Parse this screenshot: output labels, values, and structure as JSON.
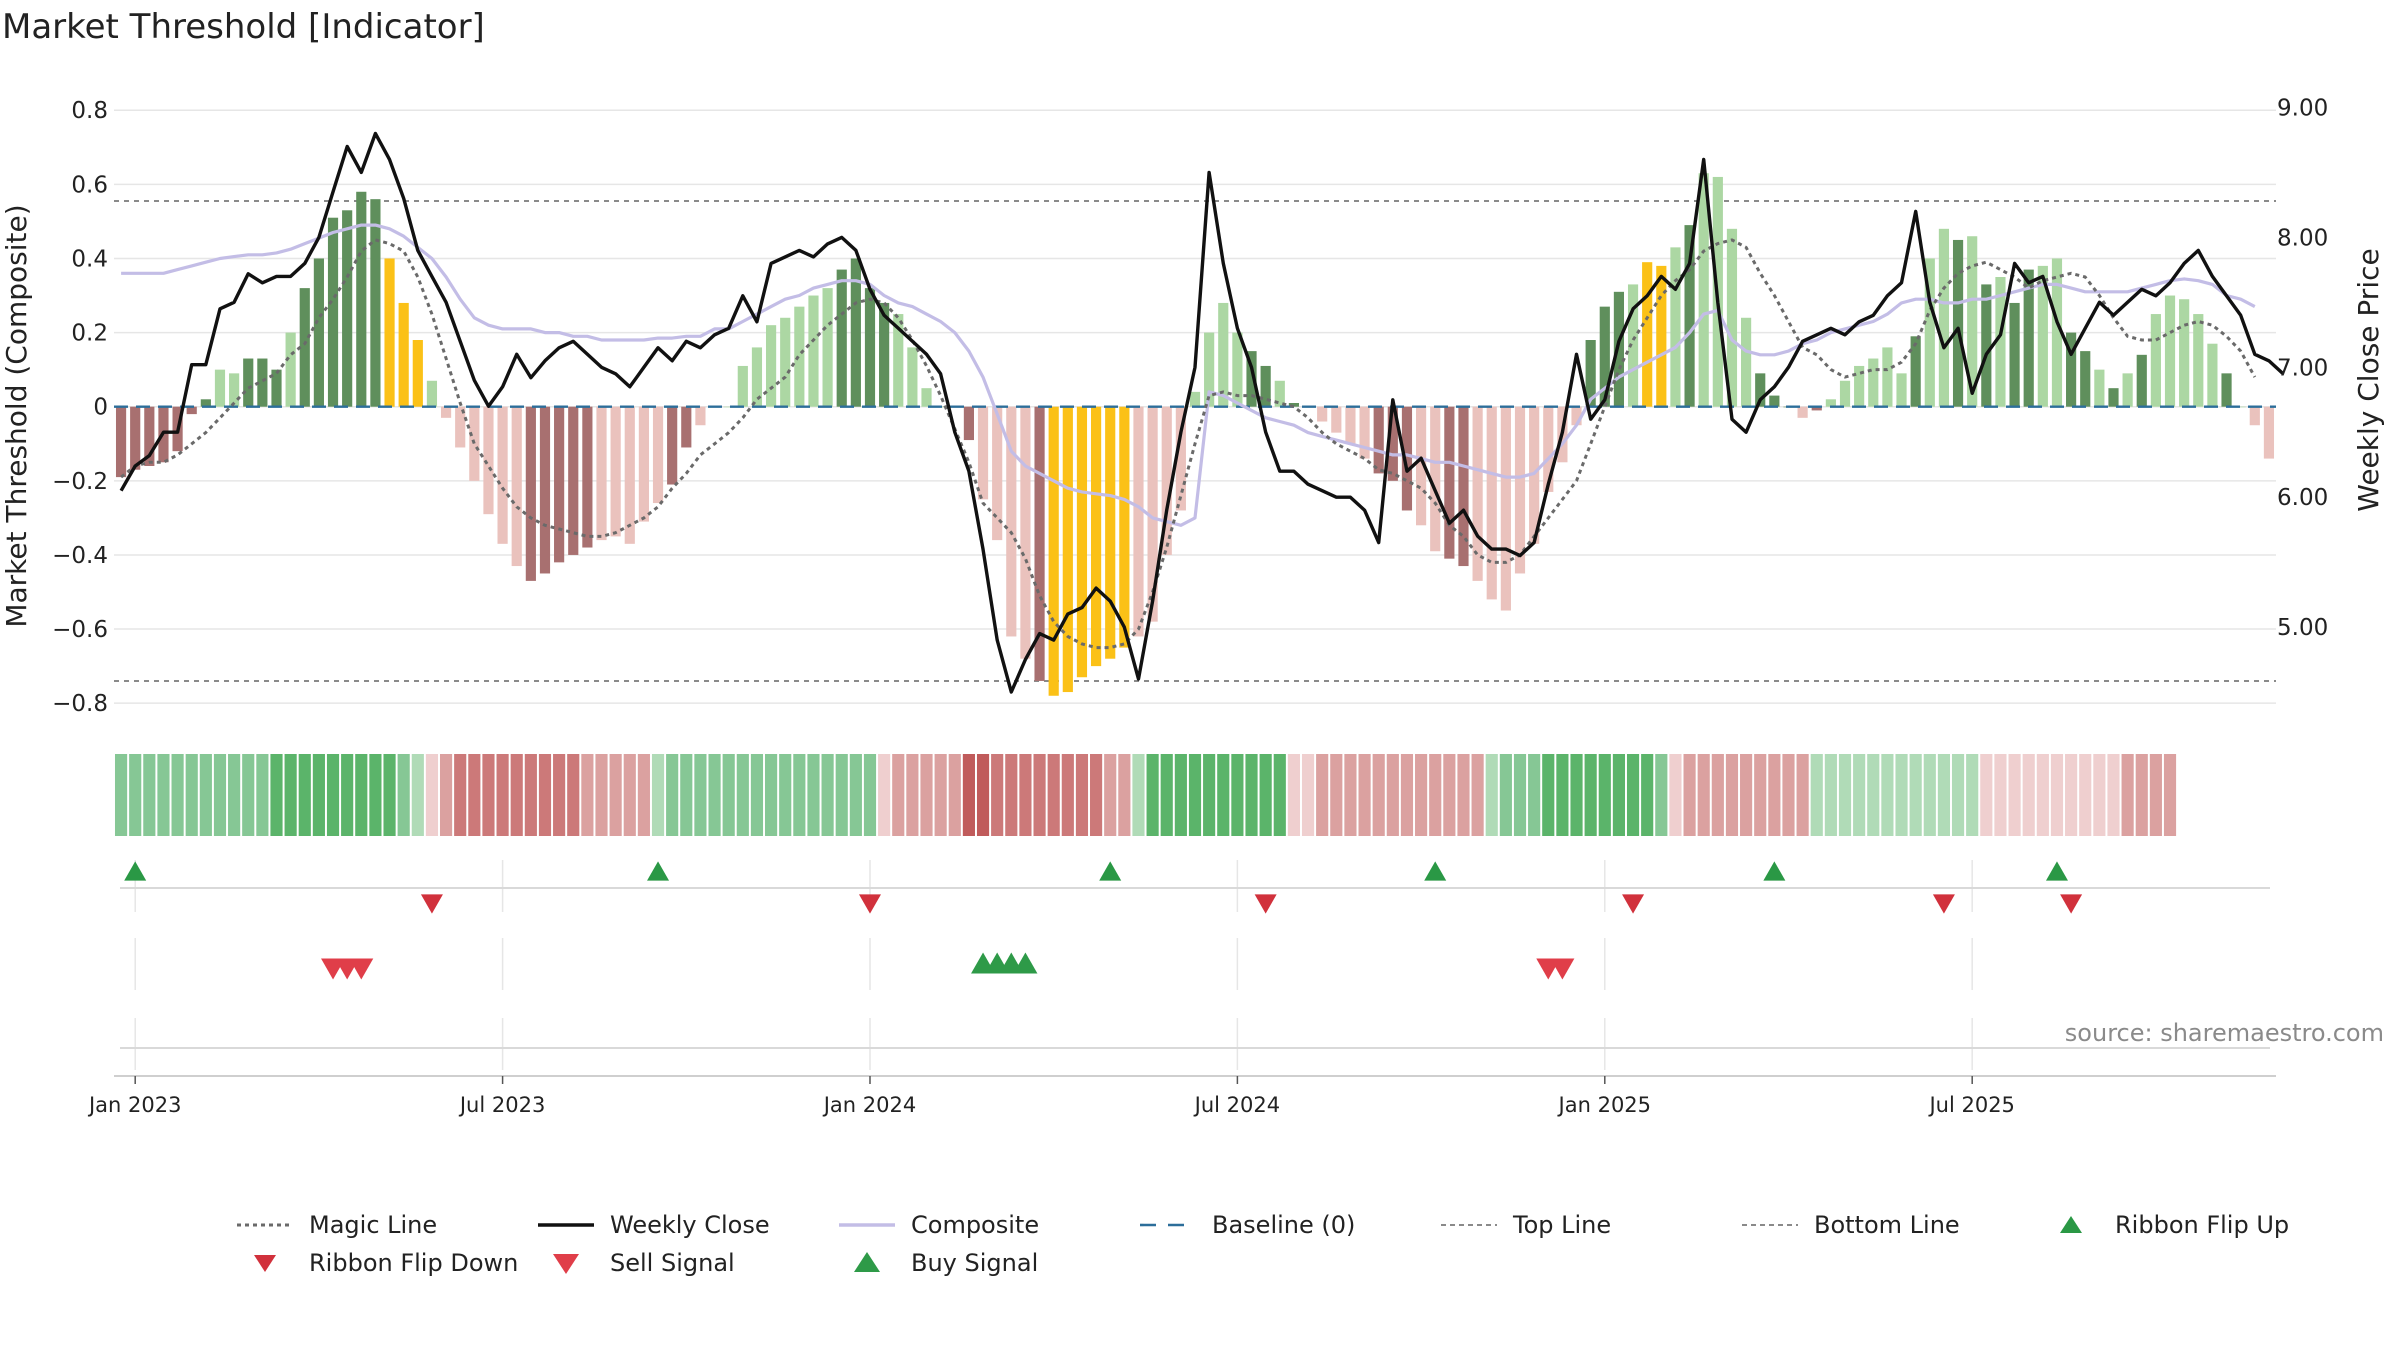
{
  "chart_data": {
    "type": "bar",
    "title": "Market Threshold [Indicator]",
    "ylabel": "Market Threshold (Composite)",
    "y2label": "Weekly Close Price",
    "ylim": [
      -0.84,
      0.86
    ],
    "y2lim": [
      4.3,
      9.15
    ],
    "yticks": [
      {
        "v": 0.8,
        "label": "0.8"
      },
      {
        "v": 0.6,
        "label": "0.6"
      },
      {
        "v": 0.4,
        "label": "0.4"
      },
      {
        "v": 0.2,
        "label": "0.2"
      },
      {
        "v": 0,
        "label": "0"
      },
      {
        "v": -0.2,
        "label": "−0.2"
      },
      {
        "v": -0.4,
        "label": "−0.4"
      },
      {
        "v": -0.6,
        "label": "−0.6"
      },
      {
        "v": -0.8,
        "label": "−0.8"
      }
    ],
    "y2ticks": [
      {
        "v": 9,
        "label": "9.00"
      },
      {
        "v": 8,
        "label": "8.00"
      },
      {
        "v": 7,
        "label": "7.00"
      },
      {
        "v": 6,
        "label": "6.00"
      },
      {
        "v": 5,
        "label": "5.00"
      }
    ],
    "xticks": [
      {
        "i": 1,
        "label": "Jan 2023"
      },
      {
        "i": 27,
        "label": "Jul 2023"
      },
      {
        "i": 53,
        "label": "Jan 2024"
      },
      {
        "i": 79,
        "label": "Jul 2024"
      },
      {
        "i": 105,
        "label": "Jan 2025"
      },
      {
        "i": 131,
        "label": "Jul 2025"
      }
    ],
    "top_line": 0.555,
    "bottom_line": -0.74,
    "source": "source: sharemaestro.com",
    "legend": [
      {
        "key": "magic",
        "label": "Magic Line"
      },
      {
        "key": "close",
        "label": "Weekly Close"
      },
      {
        "key": "composite",
        "label": "Composite"
      },
      {
        "key": "baseline",
        "label": "Baseline (0)"
      },
      {
        "key": "top",
        "label": "Top Line"
      },
      {
        "key": "bottom",
        "label": "Bottom Line"
      },
      {
        "key": "flipup",
        "label": "Ribbon Flip Up"
      },
      {
        "key": "flipdown",
        "label": "Ribbon Flip Down"
      },
      {
        "key": "sell",
        "label": "Sell Signal"
      },
      {
        "key": "buy",
        "label": "Buy Signal"
      }
    ],
    "colors": {
      "pos_dark": "#5f8f5c",
      "pos_light": "#acd7a3",
      "neg_dark": "#a87070",
      "neg_light": "#eac2bd",
      "extreme": "#fbc117",
      "close": "#111111",
      "composite": "#c3bde6",
      "magic": "#6a6a6a",
      "baseline": "#2c6e9a",
      "threshold": "#8a8a8a",
      "flip_up": "#2a9845",
      "flip_down": "#d1313c",
      "sell": "#e03e49",
      "buy": "#2e9a48"
    },
    "series": [
      {
        "name": "Market Threshold (bars)",
        "values": [
          -0.19,
          -0.17,
          -0.16,
          -0.15,
          -0.12,
          -0.02,
          0.02,
          0.1,
          0.09,
          0.13,
          0.13,
          0.1,
          0.2,
          0.32,
          0.4,
          0.51,
          0.53,
          0.58,
          0.56,
          0.4,
          0.28,
          0.18,
          0.07,
          -0.03,
          -0.11,
          -0.2,
          -0.29,
          -0.37,
          -0.43,
          -0.47,
          -0.45,
          -0.42,
          -0.4,
          -0.38,
          -0.36,
          -0.35,
          -0.37,
          -0.31,
          -0.26,
          -0.21,
          -0.11,
          -0.05,
          0.0,
          0.0,
          0.11,
          0.16,
          0.22,
          0.24,
          0.27,
          0.3,
          0.32,
          0.37,
          0.4,
          0.32,
          0.28,
          0.25,
          0.16,
          0.05,
          0.0,
          0.0,
          -0.09,
          -0.25,
          -0.36,
          -0.62,
          -0.68,
          -0.74,
          -0.78,
          -0.77,
          -0.73,
          -0.7,
          -0.68,
          -0.65,
          -0.62,
          -0.58,
          -0.4,
          -0.28,
          0.04,
          0.2,
          0.28,
          0.2,
          0.15,
          0.11,
          0.07,
          0.01,
          0.0,
          -0.04,
          -0.07,
          -0.1,
          -0.14,
          -0.18,
          -0.2,
          -0.28,
          -0.32,
          -0.39,
          -0.41,
          -0.43,
          -0.47,
          -0.52,
          -0.55,
          -0.45,
          -0.37,
          -0.23,
          -0.15,
          -0.05,
          0.18,
          0.27,
          0.31,
          0.33,
          0.39,
          0.38,
          0.43,
          0.49,
          0.63,
          0.62,
          0.48,
          0.24,
          0.09,
          0.03,
          0.0,
          -0.03,
          -0.01,
          0.02,
          0.07,
          0.11,
          0.13,
          0.16,
          0.09,
          0.19,
          0.4,
          0.48,
          0.45,
          0.46,
          0.33,
          0.35,
          0.28,
          0.37,
          0.38,
          0.4,
          0.2,
          0.15,
          0.1,
          0.05,
          0.09,
          0.14,
          0.25,
          0.3,
          0.29,
          0.25,
          0.17,
          0.09,
          0.0,
          -0.05,
          -0.14
        ],
        "shade": "dddddddlldddlddddddxxxlll ll dddddlllllddlll lllll ddddllll d ll dxxxxxxlllllll dd ddl l dddl ddl lllll dddlxx dl l ddd d llll dl d d ddl dd d d lll d  llll d  ll"
      },
      {
        "name": "Weekly Close",
        "values": [
          6.05,
          6.24,
          6.32,
          6.5,
          6.5,
          7.02,
          7.02,
          7.45,
          7.5,
          7.72,
          7.65,
          7.7,
          7.7,
          7.8,
          8.0,
          8.35,
          8.7,
          8.5,
          8.8,
          8.6,
          8.3,
          7.9,
          7.7,
          7.5,
          7.2,
          6.9,
          6.7,
          6.85,
          7.1,
          6.92,
          7.05,
          7.15,
          7.2,
          7.1,
          7.0,
          6.95,
          6.85,
          7.0,
          7.15,
          7.05,
          7.2,
          7.15,
          7.25,
          7.3,
          7.55,
          7.35,
          7.8,
          7.85,
          7.9,
          7.85,
          7.95,
          8.0,
          7.9,
          7.6,
          7.4,
          7.3,
          7.2,
          7.1,
          6.95,
          6.5,
          6.2,
          5.6,
          4.9,
          4.5,
          4.75,
          4.95,
          4.9,
          5.1,
          5.15,
          5.3,
          5.2,
          5.0,
          4.6,
          5.2,
          5.9,
          6.5,
          7.0,
          8.5,
          7.8,
          7.3,
          7.0,
          6.5,
          6.2,
          6.2,
          6.1,
          6.05,
          6.0,
          6.0,
          5.9,
          5.65,
          6.75,
          6.2,
          6.3,
          6.05,
          5.8,
          5.9,
          5.7,
          5.6,
          5.6,
          5.55,
          5.65,
          6.1,
          6.5,
          7.1,
          6.6,
          6.75,
          7.2,
          7.45,
          7.55,
          7.7,
          7.6,
          7.8,
          8.6,
          7.5,
          6.6,
          6.5,
          6.75,
          6.85,
          7.0,
          7.2,
          7.25,
          7.3,
          7.25,
          7.35,
          7.4,
          7.55,
          7.65,
          8.2,
          7.5,
          7.15,
          7.3,
          6.8,
          7.1,
          7.25,
          7.8,
          7.65,
          7.7,
          7.35,
          7.1,
          7.3,
          7.5,
          7.4,
          7.5,
          7.6,
          7.55,
          7.65,
          7.8,
          7.9,
          7.7,
          7.55,
          7.4,
          7.1,
          7.05,
          6.95
        ],
        "axis": "y2"
      },
      {
        "name": "Composite",
        "values": [
          0.36,
          0.36,
          0.36,
          0.36,
          0.37,
          0.38,
          0.39,
          0.4,
          0.405,
          0.41,
          0.41,
          0.415,
          0.425,
          0.44,
          0.455,
          0.47,
          0.48,
          0.49,
          0.49,
          0.48,
          0.46,
          0.43,
          0.4,
          0.35,
          0.29,
          0.24,
          0.22,
          0.21,
          0.21,
          0.21,
          0.2,
          0.2,
          0.19,
          0.19,
          0.18,
          0.18,
          0.18,
          0.18,
          0.185,
          0.185,
          0.19,
          0.19,
          0.21,
          0.21,
          0.23,
          0.25,
          0.27,
          0.29,
          0.3,
          0.32,
          0.33,
          0.34,
          0.34,
          0.33,
          0.3,
          0.28,
          0.27,
          0.25,
          0.23,
          0.2,
          0.15,
          0.08,
          -0.02,
          -0.12,
          -0.16,
          -0.18,
          -0.2,
          -0.22,
          -0.23,
          -0.235,
          -0.24,
          -0.25,
          -0.27,
          -0.3,
          -0.31,
          -0.32,
          -0.3,
          0.04,
          0.03,
          0.01,
          -0.01,
          -0.03,
          -0.04,
          -0.05,
          -0.07,
          -0.08,
          -0.09,
          -0.1,
          -0.11,
          -0.12,
          -0.13,
          -0.13,
          -0.14,
          -0.15,
          -0.15,
          -0.16,
          -0.17,
          -0.18,
          -0.19,
          -0.19,
          -0.18,
          -0.14,
          -0.1,
          -0.05,
          0.02,
          0.05,
          0.08,
          0.1,
          0.12,
          0.14,
          0.16,
          0.2,
          0.25,
          0.26,
          0.18,
          0.15,
          0.14,
          0.14,
          0.15,
          0.17,
          0.18,
          0.2,
          0.21,
          0.22,
          0.23,
          0.25,
          0.28,
          0.29,
          0.29,
          0.28,
          0.28,
          0.29,
          0.29,
          0.3,
          0.31,
          0.32,
          0.33,
          0.33,
          0.32,
          0.31,
          0.31,
          0.31,
          0.31,
          0.32,
          0.33,
          0.34,
          0.345,
          0.34,
          0.33,
          0.3,
          0.29,
          0.27
        ]
      },
      {
        "name": "Magic Line",
        "values": [
          -0.19,
          -0.16,
          -0.15,
          -0.15,
          -0.13,
          -0.1,
          -0.07,
          -0.03,
          0.01,
          0.05,
          0.07,
          0.09,
          0.14,
          0.17,
          0.24,
          0.29,
          0.35,
          0.42,
          0.45,
          0.44,
          0.42,
          0.35,
          0.25,
          0.13,
          0.01,
          -0.1,
          -0.16,
          -0.22,
          -0.27,
          -0.3,
          -0.32,
          -0.33,
          -0.34,
          -0.35,
          -0.35,
          -0.34,
          -0.32,
          -0.3,
          -0.27,
          -0.22,
          -0.18,
          -0.13,
          -0.1,
          -0.07,
          -0.03,
          0.02,
          0.05,
          0.08,
          0.14,
          0.18,
          0.22,
          0.25,
          0.28,
          0.29,
          0.28,
          0.24,
          0.18,
          0.11,
          0.03,
          -0.06,
          -0.15,
          -0.26,
          -0.3,
          -0.34,
          -0.41,
          -0.51,
          -0.58,
          -0.62,
          -0.64,
          -0.65,
          -0.65,
          -0.64,
          -0.6,
          -0.5,
          -0.38,
          -0.24,
          -0.1,
          0.03,
          0.04,
          0.03,
          0.03,
          0.02,
          0.01,
          0.0,
          -0.03,
          -0.07,
          -0.1,
          -0.12,
          -0.14,
          -0.17,
          -0.18,
          -0.2,
          -0.22,
          -0.26,
          -0.32,
          -0.35,
          -0.4,
          -0.42,
          -0.42,
          -0.4,
          -0.35,
          -0.3,
          -0.25,
          -0.2,
          -0.1,
          0.0,
          0.1,
          0.18,
          0.24,
          0.3,
          0.34,
          0.37,
          0.42,
          0.44,
          0.45,
          0.43,
          0.36,
          0.3,
          0.23,
          0.16,
          0.14,
          0.1,
          0.08,
          0.09,
          0.1,
          0.1,
          0.12,
          0.17,
          0.26,
          0.32,
          0.36,
          0.38,
          0.39,
          0.37,
          0.35,
          0.32,
          0.34,
          0.35,
          0.36,
          0.35,
          0.3,
          0.24,
          0.19,
          0.18,
          0.18,
          0.2,
          0.22,
          0.23,
          0.22,
          0.19,
          0.15,
          0.08
        ]
      }
    ],
    "ribbon": [
      [
        2,
        2,
        2,
        2,
        2,
        2,
        2,
        2,
        2,
        2,
        2,
        3,
        3,
        3,
        3,
        3,
        3,
        3,
        3,
        3,
        2,
        1
      ],
      [
        -1,
        -2,
        -3,
        -3,
        -3,
        -3,
        -3,
        -3,
        -3,
        -3,
        -3,
        -2,
        -2,
        -2,
        -2,
        -2
      ],
      [
        1,
        2,
        2,
        2,
        2,
        2,
        2,
        2,
        2,
        2,
        2,
        2,
        2,
        2,
        2,
        2
      ],
      [
        -1,
        -2,
        -2,
        -2,
        -2,
        -2
      ],
      [
        -4,
        -4,
        -3,
        -3,
        -3,
        -3,
        -3,
        -3,
        -3,
        -3,
        -2,
        -2
      ],
      [
        1,
        3,
        3,
        3,
        3,
        3,
        3,
        3,
        3,
        3,
        3
      ],
      [
        -1,
        -1,
        -2,
        -2,
        -2,
        -2,
        -2,
        -2,
        -2,
        -2,
        -2,
        -2,
        -2,
        -2
      ],
      [
        1,
        2,
        2,
        2,
        3,
        3,
        3,
        3,
        3,
        3,
        3,
        3,
        2
      ],
      [
        -1,
        -2,
        -2,
        -2,
        -2,
        -2,
        -2,
        -2,
        -2,
        -2
      ],
      [
        1,
        1,
        1,
        1,
        1,
        1,
        1,
        1,
        1,
        1,
        1,
        1
      ],
      [
        -1,
        -1,
        -1,
        -1,
        -1,
        -1,
        -1,
        -1,
        -1,
        -1,
        -2,
        -2,
        -2,
        -2
      ]
    ],
    "flip_up": [
      1,
      38,
      70,
      93,
      117,
      137
    ],
    "flip_down": [
      22,
      53,
      81,
      107,
      129,
      138
    ],
    "sell_signals": [
      15,
      16,
      17,
      101,
      102
    ],
    "buy_signals": [
      61,
      62,
      63,
      64
    ]
  }
}
